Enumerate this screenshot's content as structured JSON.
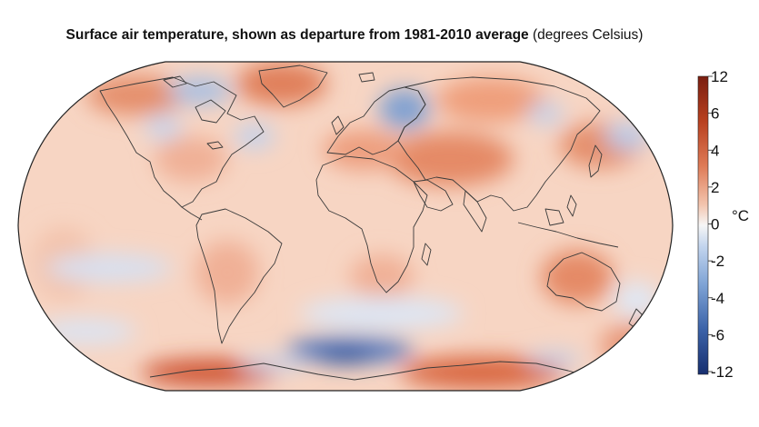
{
  "title": {
    "bold": "Surface air temperature, shown as departure from 1981-2010 average",
    "unit": "(degrees Celsius)"
  },
  "map": {
    "projection": "Robinson-like world map",
    "land_outline_color": "#3a3a3a",
    "background_anomaly_color": "#f7d3c2"
  },
  "colorbar": {
    "unit": "°C",
    "ticks": [
      "12",
      "6",
      "4",
      "2",
      "0",
      "-2",
      "-4",
      "-6",
      "-12"
    ],
    "warm_color": "#b8401f",
    "neutral_color": "#f6f6f6",
    "cold_color": "#1a3f8f"
  }
}
